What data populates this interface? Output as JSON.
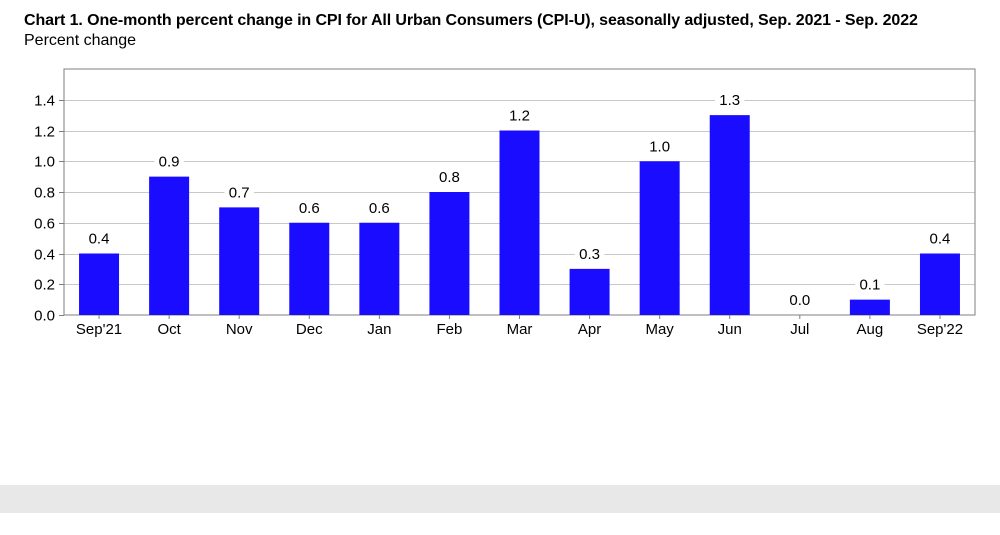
{
  "chart_data": {
    "type": "bar",
    "title": "Chart 1. One-month percent change in CPI for All Urban Consumers (CPI-U), seasonally adjusted, Sep. 2021 - Sep. 2022",
    "subtitle": "Percent change",
    "xlabel": "",
    "ylabel": "",
    "categories": [
      "Sep'21",
      "Oct",
      "Nov",
      "Dec",
      "Jan",
      "Feb",
      "Mar",
      "Apr",
      "May",
      "Jun",
      "Jul",
      "Aug",
      "Sep'22"
    ],
    "values": [
      0.4,
      0.9,
      0.7,
      0.6,
      0.6,
      0.8,
      1.2,
      0.3,
      1.0,
      1.3,
      0.0,
      0.1,
      0.4
    ],
    "data_labels": [
      "0.4",
      "0.9",
      "0.7",
      "0.6",
      "0.6",
      "0.8",
      "1.2",
      "0.3",
      "1.0",
      "1.3",
      "0.0",
      "0.1",
      "0.4"
    ],
    "ylim": [
      0,
      1.6
    ],
    "yticks": [
      0.0,
      0.2,
      0.4,
      0.6,
      0.8,
      1.0,
      1.2,
      1.4
    ],
    "ytick_labels": [
      "0.0",
      "0.2",
      "0.4",
      "0.6",
      "0.8",
      "1.0",
      "1.2",
      "1.4"
    ],
    "grid": true,
    "bar_color": "#1a0dff",
    "grid_color": "#c8c8c8"
  }
}
